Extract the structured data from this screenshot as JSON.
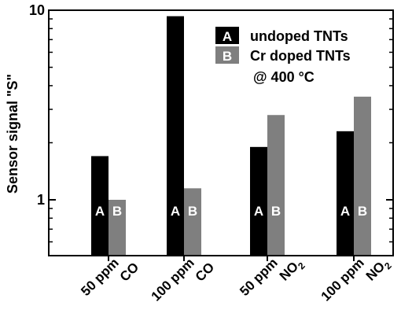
{
  "chart_data": {
    "type": "bar",
    "ylabel": "Sensor signal \"S\"",
    "yscale": "log",
    "ylim": [
      0.55,
      10
    ],
    "yticks": [
      {
        "value": 1,
        "label": "1"
      },
      {
        "value": 10,
        "label": "10"
      }
    ],
    "categories": [
      {
        "line1": "50 ppm",
        "line2": "CO",
        "sub": ""
      },
      {
        "line1": "100 ppm",
        "line2": "CO",
        "sub": ""
      },
      {
        "line1": "50 ppm",
        "line2": "NO",
        "sub": "2"
      },
      {
        "line1": "100 ppm",
        "line2": "NO",
        "sub": "2"
      }
    ],
    "series": [
      {
        "name": "undoped TNTs",
        "marker": "A",
        "color": "#000000",
        "values": [
          1.7,
          9.3,
          1.9,
          2.3
        ]
      },
      {
        "name": "Cr doped TNTs",
        "marker": "B",
        "color": "#7f7f7f",
        "values": [
          1.0,
          1.15,
          2.8,
          3.5
        ]
      }
    ],
    "annotation": "@ 400 °C",
    "legend_position": "top-right",
    "grid": false
  }
}
